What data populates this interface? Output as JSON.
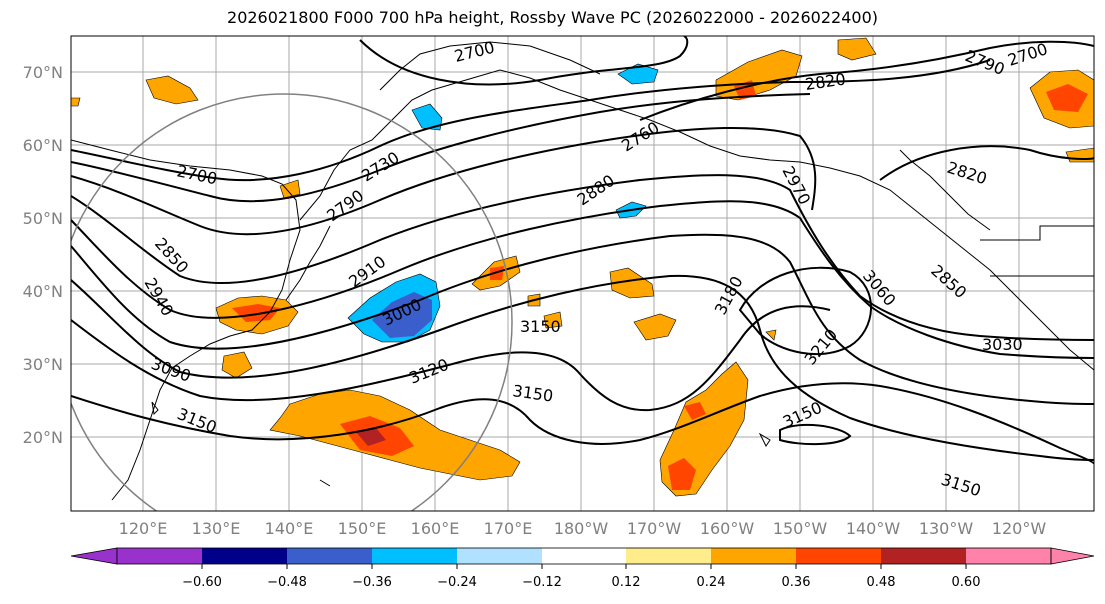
{
  "title": "2026021800 F000 700 hPa height, Rossby Wave PC (2026022000 - 2026022400)",
  "lat_labels": [
    "70°N",
    "60°N",
    "50°N",
    "40°N",
    "30°N",
    "20°N"
  ],
  "lon_labels": [
    "120°E",
    "130°E",
    "140°E",
    "150°E",
    "160°E",
    "170°E",
    "180°W",
    "170°W",
    "160°W",
    "150°W",
    "140°W",
    "130°W",
    "120°W"
  ],
  "contour_labels": [
    "2700",
    "2700",
    "2730",
    "2760",
    "2790",
    "2820",
    "2850",
    "2880",
    "2910",
    "2940",
    "2970",
    "3000",
    "3030",
    "3060",
    "3090",
    "3120",
    "3150",
    "3150",
    "3150",
    "3150",
    "3150",
    "3180",
    "3210",
    "2820",
    "2850",
    "2790",
    "2700"
  ],
  "colorbar": {
    "ticks": [
      "−0.60",
      "−0.48",
      "−0.36",
      "−0.24",
      "−0.12",
      "0.12",
      "0.24",
      "0.36",
      "0.48",
      "0.60"
    ],
    "colors": [
      "#9932cc",
      "#00008b",
      "#3a5fcd",
      "#00bfff",
      "#b0e2ff",
      "#ffffff",
      "#ffec8b",
      "#ffa500",
      "#ff4500",
      "#b22222",
      "#ff82ab"
    ]
  },
  "shading": {
    "colors": {
      "weak_pos": "#ffec8b",
      "pos": "#ffa500",
      "strong_pos": "#ff4500",
      "very_strong_pos": "#b22222",
      "weak_neg": "#b0e2ff",
      "neg": "#00bfff",
      "strong_neg": "#3a5fcd"
    }
  }
}
